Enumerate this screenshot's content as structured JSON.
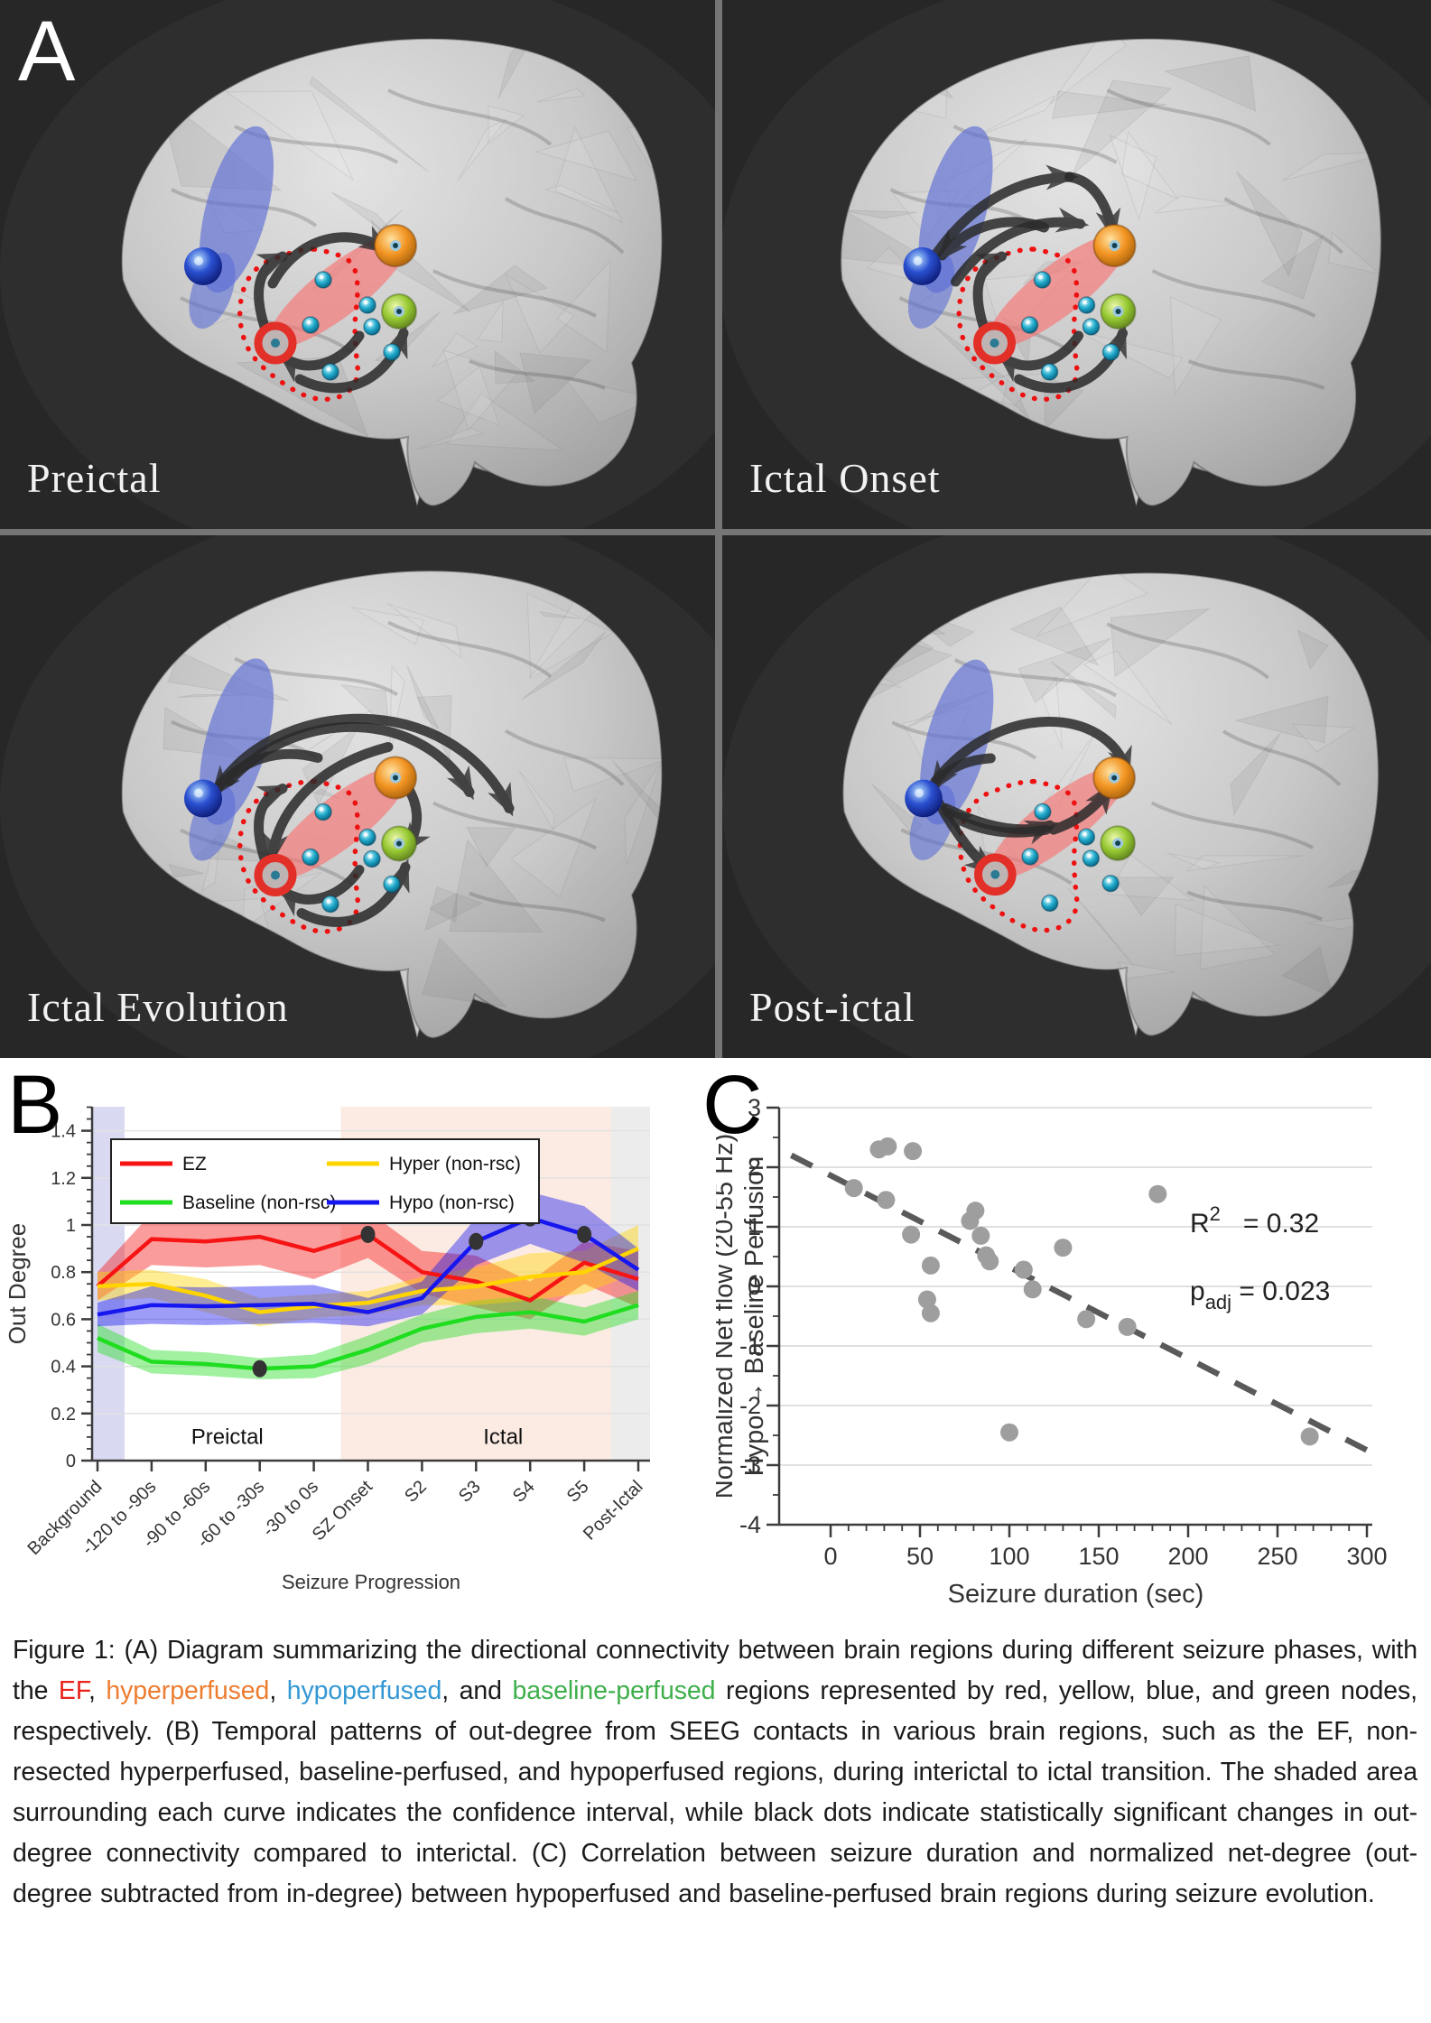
{
  "panel_a": {
    "label": "A",
    "node_legend": [
      {
        "name": "ez-node",
        "color": "#e23028"
      },
      {
        "name": "hyperperfused-node",
        "color": "#f29422"
      },
      {
        "name": "hypoperfused-node",
        "color": "#2244cc"
      },
      {
        "name": "baseline-perfused-node",
        "color": "#96c832"
      },
      {
        "name": "seeg-contact-node",
        "color": "#20aacc"
      }
    ],
    "phases": [
      {
        "id": "preictal",
        "label": "Preictal",
        "arrows": [
          "M 302 314 C 330 262 386 250 426 276",
          "M 295 368 C 279 322 286 296 313 284",
          "M 398 372 C 374 408 334 412 315 396",
          "M 332 420 C 374 442 426 428 447 369"
        ]
      },
      {
        "id": "ictal-onset",
        "label": "Ictal Onset",
        "arrows": [
          "M 295 368 C 279 322 286 296 313 284",
          "M 240 282 C 282 222 335 197 388 196",
          "M 388 196 C 416 200 430 228 436 258",
          "M 262 312 C 300 258 352 240 400 248",
          "M 360 252 C 320 238 278 248 247 283",
          "M 398 372 C 374 408 334 412 315 396",
          "M 332 420 C 374 442 426 428 447 369"
        ]
      },
      {
        "id": "ictal-evolution",
        "label": "Ictal Evolution",
        "arrows": [
          "M 236 292 C 300 180 500 172 564 306",
          "M 254 276 C 330 192 468 196 520 288",
          "M 352 250 C 308 238 266 252 239 287",
          "M 430 238 C 360 256 310 300 301 360",
          "M 295 368 C 279 322 286 296 313 284",
          "M 398 374 C 374 410 334 414 315 398",
          "M 334 422 C 376 444 428 430 449 371",
          "M 440 268 C 468 298 466 328 450 350"
        ]
      },
      {
        "id": "post-ictal",
        "label": "Post-ictal",
        "arrows": [
          "M 238 276 C 308 186 430 192 452 264",
          "M 300 250 C 272 252 250 262 237 281",
          "M 250 306 C 300 330 338 334 366 325",
          "M 362 330 C 316 338 280 330 252 311",
          "M 242 300 C 262 336 283 362 299 375",
          "M 370 330 C 400 320 420 302 432 284"
        ]
      }
    ]
  },
  "chart_data": [
    {
      "panel_label": "B",
      "type": "line",
      "xlabel": "Seizure Progression",
      "ylabel": "Out Degree",
      "ylim": [
        0,
        1.5
      ],
      "yticks": [
        0,
        0.2,
        0.4,
        0.6,
        0.8,
        1.0,
        1.2,
        1.4
      ],
      "categories": [
        "Background",
        "-120 to -90s",
        "-90 to -60s",
        "-60 to -30s",
        "-30 to 0s",
        "SZ Onset",
        "S2",
        "S3",
        "S4",
        "S5",
        "Post-Ictal"
      ],
      "bands": [
        {
          "name": "background-band",
          "from": -0.6,
          "to": 0.5,
          "color": "#d9d9f2"
        },
        {
          "name": "ictal-band",
          "from": 4.5,
          "to": 9.5,
          "color": "#fcebe3"
        },
        {
          "name": "post-ictal-band",
          "from": 9.5,
          "to": 10.7,
          "color": "#ececec"
        }
      ],
      "region_labels": [
        {
          "text": "Preictal",
          "x": 2.4,
          "y": 0.07
        },
        {
          "text": "Ictal",
          "x": 7.5,
          "y": 0.07
        }
      ],
      "legend": {
        "order_note": "column-major 2x2",
        "entries": [
          "EZ",
          "Baseline (non-rsc)",
          "Hyper (non-rsc)",
          "Hypo (non-rsc)"
        ]
      },
      "series": [
        {
          "name": "EZ",
          "color": "#f61414",
          "values": [
            0.74,
            0.94,
            0.93,
            0.95,
            0.89,
            0.96,
            0.8,
            0.76,
            0.68,
            0.84,
            0.77
          ],
          "band": [
            0.06,
            0.11,
            0.11,
            0.12,
            0.12,
            0.1,
            0.09,
            0.11,
            0.08,
            0.09,
            0.12
          ]
        },
        {
          "name": "Baseline (non-rsc)",
          "color": "#1fdd1f",
          "values": [
            0.52,
            0.42,
            0.41,
            0.39,
            0.4,
            0.47,
            0.56,
            0.61,
            0.63,
            0.59,
            0.66
          ],
          "band": [
            0.06,
            0.05,
            0.05,
            0.045,
            0.05,
            0.06,
            0.06,
            0.07,
            0.07,
            0.06,
            0.06
          ]
        },
        {
          "name": "Hyper (non-rsc)",
          "color": "#ffd400",
          "values": [
            0.74,
            0.75,
            0.7,
            0.63,
            0.655,
            0.67,
            0.72,
            0.74,
            0.78,
            0.8,
            0.9
          ],
          "band": [
            0.06,
            0.06,
            0.07,
            0.06,
            0.05,
            0.05,
            0.06,
            0.08,
            0.1,
            0.09,
            0.1
          ]
        },
        {
          "name": "Hypo (non-rsc)",
          "color": "#1616ee",
          "values": [
            0.62,
            0.66,
            0.655,
            0.66,
            0.665,
            0.63,
            0.69,
            0.93,
            1.03,
            0.96,
            0.81
          ],
          "band": [
            0.05,
            0.08,
            0.08,
            0.08,
            0.08,
            0.06,
            0.07,
            0.1,
            0.11,
            0.12,
            0.09
          ]
        }
      ],
      "significant_dots": [
        {
          "series": "EZ",
          "x": 5,
          "y": 0.96
        },
        {
          "series": "Baseline (non-rsc)",
          "x": 3,
          "y": 0.39
        },
        {
          "series": "Hypo (non-rsc)",
          "x": 7,
          "y": 0.93
        },
        {
          "series": "Hypo (non-rsc)",
          "x": 8,
          "y": 1.03
        },
        {
          "series": "Hypo (non-rsc)",
          "x": 9,
          "y": 0.96
        }
      ]
    },
    {
      "panel_label": "C",
      "type": "scatter",
      "xlabel": "Seizure duration (sec)",
      "ylabel_line1": "Normalized Net flow (20-55 Hz)",
      "ylabel_line2": "Hypo → Baseline Perfusion",
      "xlim": [
        -28,
        303
      ],
      "ylim": [
        -4,
        3
      ],
      "xticks": [
        0,
        50,
        100,
        150,
        200,
        250,
        300
      ],
      "yticks": [
        -4,
        -3,
        -2,
        -1,
        0,
        1,
        2,
        3
      ],
      "marker_color": "#9e9e9e",
      "points": [
        [
          13,
          1.65
        ],
        [
          27,
          2.3
        ],
        [
          32,
          2.35
        ],
        [
          46,
          2.27
        ],
        [
          31,
          1.45
        ],
        [
          45,
          0.87
        ],
        [
          56,
          0.35
        ],
        [
          54,
          -0.22
        ],
        [
          56,
          -0.45
        ],
        [
          78,
          1.1
        ],
        [
          81,
          1.27
        ],
        [
          84,
          0.85
        ],
        [
          87,
          0.52
        ],
        [
          89,
          0.42
        ],
        [
          108,
          0.28
        ],
        [
          113,
          -0.05
        ],
        [
          100,
          -2.45
        ],
        [
          130,
          0.65
        ],
        [
          143,
          -0.55
        ],
        [
          166,
          -0.68
        ],
        [
          183,
          1.55
        ],
        [
          268,
          -2.52
        ]
      ],
      "trend": {
        "x1": -22,
        "y1": 2.2,
        "x2": 302,
        "y2": -2.78,
        "style": "dashed",
        "color": "#5a5a5a"
      },
      "annotation": {
        "r2_base": "R",
        "r2_sup": "2",
        "r2_rest": " = 0.32",
        "p_base": "p",
        "p_sub": "adj",
        "p_rest": " = 0.023"
      }
    }
  ],
  "caption": {
    "segments": [
      {
        "text": "Figure 1: (A) Diagram summarizing the directional connectivity between brain regions during different seizure phases, with the ",
        "color": "#1b1b1b"
      },
      {
        "text": "EF",
        "color": "#e8231a"
      },
      {
        "text": ", ",
        "color": "#1b1b1b"
      },
      {
        "text": "hyperperfused",
        "color": "#ed7d31"
      },
      {
        "text": ", ",
        "color": "#1b1b1b"
      },
      {
        "text": "hypoperfused",
        "color": "#3498d3"
      },
      {
        "text": ", and ",
        "color": "#1b1b1b"
      },
      {
        "text": "baseline-perfused",
        "color": "#3faf4c"
      },
      {
        "text": " regions represented by red, yellow, blue, and green nodes, respectively. (B) Temporal patterns of out-degree from SEEG contacts in various brain regions, such as the EF, non-resected hyperperfused, baseline-perfused, and hypoperfused regions, during interictal to ictal transition. The shaded area surrounding each curve indicates the confidence interval, while black dots indicate statistically significant changes in out-degree connectivity compared to interictal. (C) Correlation between seizure duration and normalized net-degree (out-degree subtracted from in-degree) between hypoperfused and baseline-perfused brain regions during seizure evolution.",
        "color": "#1b1b1b"
      }
    ]
  }
}
